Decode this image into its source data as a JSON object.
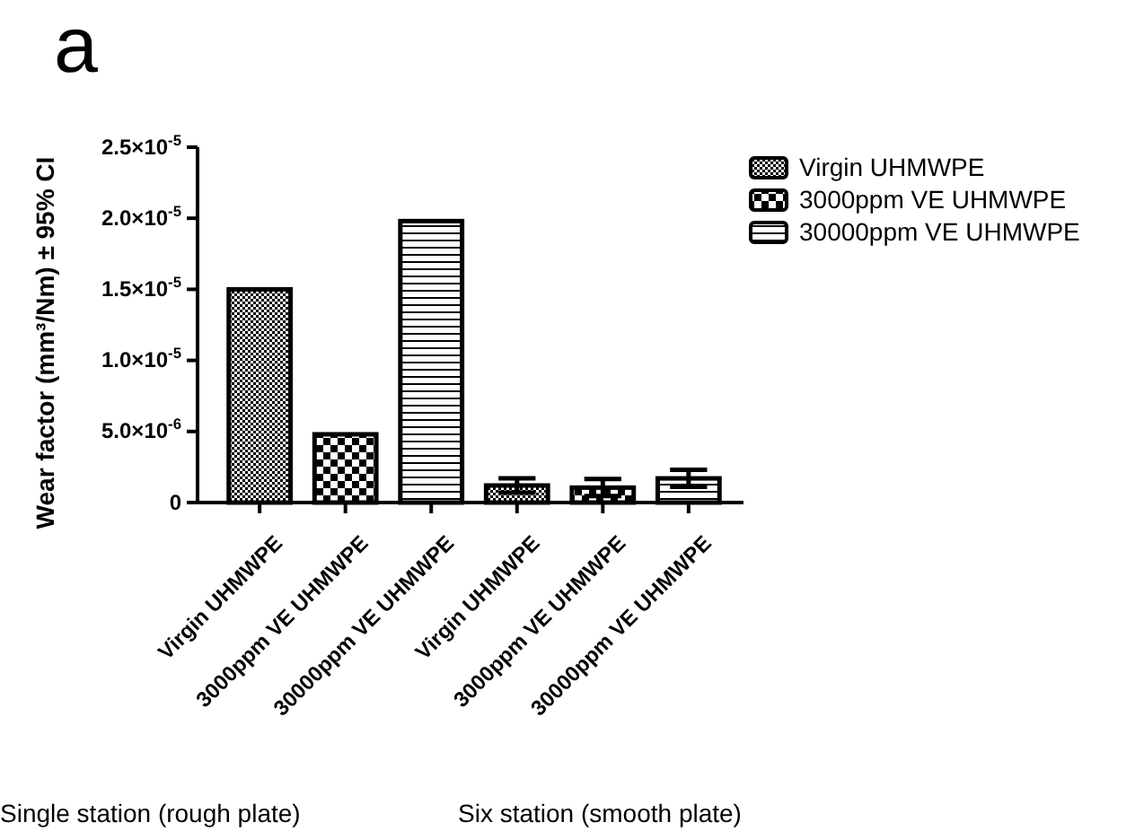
{
  "chart_data": {
    "type": "bar",
    "title": "a",
    "ylabel": "Wear factor (mm³/Nm) ± 95% CI",
    "categories": [
      "Virgin UHMWPE",
      "3000ppm VE UHMWPE",
      "30000ppm VE UHMWPE",
      "Virgin UHMWPE",
      "3000ppm VE UHMWPE",
      "30000ppm VE UHMWPE"
    ],
    "series": [
      {
        "name": "Virgin UHMWPE",
        "color": "#000000",
        "values": [
          1.5e-05,
          null,
          null,
          1.2e-06,
          null,
          null
        ],
        "errors": [
          null,
          null,
          null,
          5e-07,
          null,
          null
        ]
      },
      {
        "name": "3000ppm VE UHMWPE",
        "color": "#000000",
        "values": [
          null,
          4.8e-06,
          null,
          null,
          1.05e-06,
          null
        ],
        "errors": [
          null,
          null,
          null,
          null,
          6e-07,
          null
        ]
      },
      {
        "name": "30000ppm VE UHMWPE",
        "color": "#000000",
        "values": [
          null,
          null,
          1.98e-05,
          null,
          null,
          1.7e-06
        ],
        "errors": [
          null,
          null,
          null,
          null,
          null,
          6e-07
        ]
      }
    ],
    "ylim": [
      0,
      2.5e-05
    ],
    "yticks": [
      0,
      {
        "value": 5e-06,
        "label": "5.0×10$^{-6}$"
      },
      {
        "value": 1e-05,
        "label": "1.0×10$^{-5}$"
      },
      {
        "value": 1.5e-05,
        "label": "1.5×10$^{-5}$"
      },
      {
        "value": 2e-05,
        "label": "2.0×10$^{-5}$"
      },
      {
        "value": 2.5e-05,
        "label": "2.5×10$^{-5}$"
      }
    ],
    "grid": false,
    "legend": "top right",
    "annotations": [
      "Single station (rough plate)",
      "Six station (smooth plate)"
    ]
  }
}
